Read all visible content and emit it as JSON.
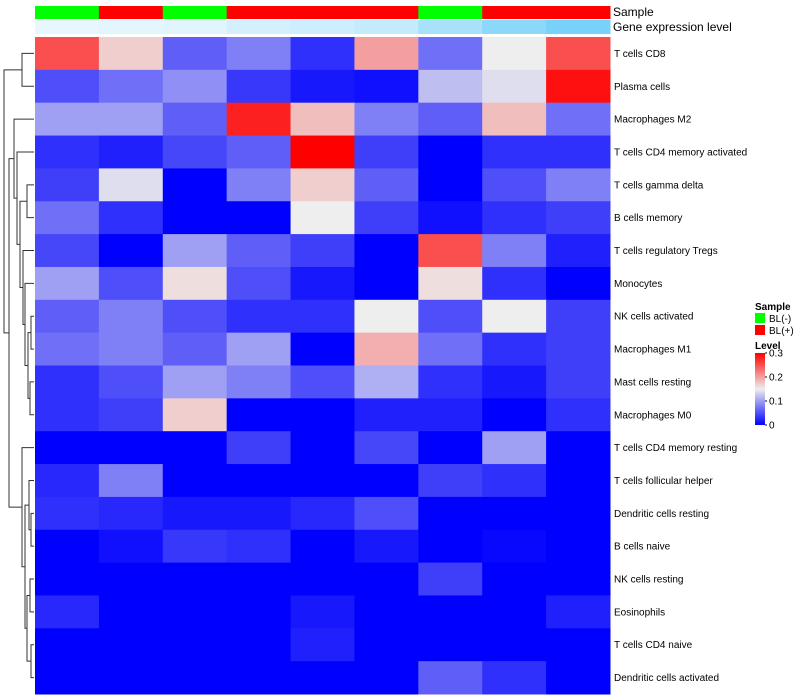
{
  "chart_data": {
    "type": "heatmap",
    "annotation_tracks": [
      {
        "name": "Sample",
        "values": [
          "BL(-)",
          "BL(+)",
          "BL(-)",
          "BL(+)",
          "BL(+)",
          "BL(+)",
          "BL(-)",
          "BL(+)",
          "BL(+)"
        ]
      },
      {
        "name": "Gene expression level",
        "values": [
          0.05,
          0.08,
          0.1,
          0.18,
          0.22,
          0.28,
          0.45,
          0.62,
          0.75
        ]
      }
    ],
    "rows": [
      "T cells CD8",
      "Plasma cells",
      "Macrophages M2",
      "T cells CD4 memory activated",
      "T cells gamma delta",
      "B cells memory",
      "T cells regulatory  Tregs",
      "Monocytes",
      "NK cells activated",
      "Macrophages M1",
      "Mast cells resting",
      "Macrophages M0",
      "T cells CD4 memory resting",
      "T cells follicular helper",
      "Dendritic cells resting",
      "B cells naive",
      "NK cells resting",
      "Eosinophils",
      "T cells CD4 naive",
      "Dendritic cells activated"
    ],
    "values": [
      [
        0.25,
        0.17,
        0.06,
        0.08,
        0.03,
        0.2,
        0.07,
        0.15,
        0.25
      ],
      [
        0.05,
        0.07,
        0.09,
        0.035,
        0.015,
        0.01,
        0.12,
        0.14,
        0.29
      ],
      [
        0.1,
        0.1,
        0.06,
        0.28,
        0.18,
        0.08,
        0.06,
        0.18,
        0.07
      ],
      [
        0.03,
        0.02,
        0.045,
        0.06,
        0.3,
        0.04,
        0.0,
        0.03,
        0.03
      ],
      [
        0.04,
        0.14,
        0.0,
        0.08,
        0.17,
        0.06,
        0.0,
        0.05,
        0.08
      ],
      [
        0.07,
        0.03,
        0.0,
        0.0,
        0.15,
        0.04,
        0.01,
        0.03,
        0.04
      ],
      [
        0.045,
        0.0,
        0.1,
        0.06,
        0.04,
        0.0,
        0.25,
        0.08,
        0.02
      ],
      [
        0.1,
        0.05,
        0.16,
        0.05,
        0.015,
        0.0,
        0.16,
        0.03,
        0.0
      ],
      [
        0.06,
        0.08,
        0.05,
        0.03,
        0.03,
        0.15,
        0.05,
        0.15,
        0.04
      ],
      [
        0.07,
        0.08,
        0.06,
        0.1,
        0.0,
        0.19,
        0.07,
        0.03,
        0.04
      ],
      [
        0.03,
        0.05,
        0.1,
        0.08,
        0.05,
        0.11,
        0.03,
        0.015,
        0.04
      ],
      [
        0.03,
        0.04,
        0.17,
        0.0,
        0.0,
        0.02,
        0.02,
        0.0,
        0.03
      ],
      [
        0.0,
        0.0,
        0.0,
        0.04,
        0.0,
        0.045,
        0.0,
        0.1,
        0.0
      ],
      [
        0.025,
        0.08,
        0.0,
        0.0,
        0.0,
        0.0,
        0.04,
        0.03,
        0.0
      ],
      [
        0.03,
        0.025,
        0.015,
        0.015,
        0.025,
        0.05,
        0.0,
        0.0,
        0.0
      ],
      [
        0.0,
        0.01,
        0.035,
        0.03,
        0.0,
        0.015,
        0.0,
        0.005,
        0.0
      ],
      [
        0.0,
        0.0,
        0.0,
        0.0,
        0.0,
        0.0,
        0.04,
        0.0,
        0.0
      ],
      [
        0.025,
        0.0,
        0.0,
        0.0,
        0.015,
        0.0,
        0.0,
        0.0,
        0.02
      ],
      [
        0.0,
        0.0,
        0.0,
        0.0,
        0.02,
        0.0,
        0.0,
        0.0,
        0.0
      ],
      [
        0.0,
        0.0,
        0.0,
        0.0,
        0.0,
        0.0,
        0.06,
        0.03,
        0.0
      ]
    ],
    "row_dendrogram": "left",
    "legend": {
      "position": "right",
      "sample": {
        "title": "Sample",
        "entries": [
          {
            "label": "BL(-)",
            "color": "#00ff00"
          },
          {
            "label": "BL(+)",
            "color": "#ff0000"
          }
        ]
      },
      "level": {
        "title": "Level",
        "ticks": [
          0.3,
          0.2,
          0.1,
          0
        ],
        "tick_labels": [
          "0.3",
          "0.2",
          "0.1",
          "0"
        ]
      }
    },
    "color_scale": {
      "low": "#0000ff",
      "mid": "#eeeeee",
      "high": "#ff0000",
      "domain": [
        0,
        0.15,
        0.3
      ]
    },
    "gene_expression_scale": {
      "low": "#f0fafd",
      "high": "#4fc3f7"
    },
    "sample_colors": {
      "BL(-)": "#00ff00",
      "BL(+)": "#ff0000"
    }
  }
}
